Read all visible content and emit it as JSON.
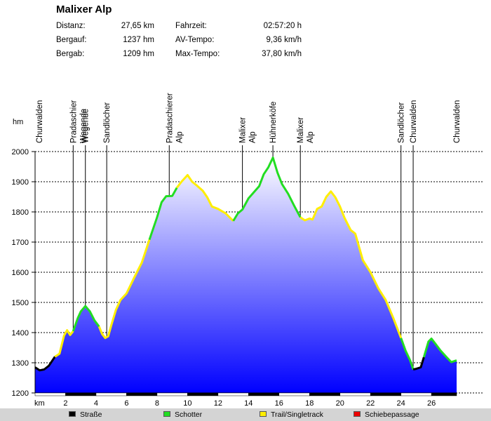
{
  "title": "Malixer Alp",
  "stats_left": [
    {
      "label": "Distanz:",
      "value": "27,65 km"
    },
    {
      "label": "Bergauf:",
      "value": "1237 hm"
    },
    {
      "label": "Bergab:",
      "value": "1209 hm"
    }
  ],
  "stats_right": [
    {
      "label": "Fahrzeit:",
      "value": "02:57:20 h"
    },
    {
      "label": "AV-Tempo:",
      "value": "9,36 km/h"
    },
    {
      "label": "Max-Tempo:",
      "value": "37,80 km/h"
    }
  ],
  "legend": [
    {
      "label": "Straße",
      "color": "#000000"
    },
    {
      "label": "Schotter",
      "color": "#22dd22"
    },
    {
      "label": "Trail/Singletrack",
      "color": "#ffee00"
    },
    {
      "label": "Schiebepassage",
      "color": "#ee0000"
    }
  ],
  "chart_data": {
    "type": "area",
    "xlabel": "km",
    "ylabel": "hm",
    "xlim": [
      0,
      27.65
    ],
    "ylim": [
      1200,
      2000
    ],
    "x_ticks": [
      2,
      4,
      6,
      8,
      10,
      12,
      14,
      16,
      18,
      20,
      22,
      24,
      26
    ],
    "y_ticks": [
      1200,
      1300,
      1400,
      1500,
      1600,
      1700,
      1800,
      1900,
      2000
    ],
    "grid": true,
    "fill": {
      "top": "#ffffff",
      "bottom": "#0000ff"
    },
    "waypoints": [
      {
        "km": 0,
        "name": "Churwalden"
      },
      {
        "km": 2.5,
        "name": "Pradaschier Wegende"
      },
      {
        "km": 3.3,
        "name": "Wegende"
      },
      {
        "km": 4.7,
        "name": "Sandlöcher"
      },
      {
        "km": 8.8,
        "name": "Pradaschierer Alp"
      },
      {
        "km": 13.6,
        "name": "Malixer Alp"
      },
      {
        "km": 15.6,
        "name": "Hühnerköfe"
      },
      {
        "km": 17.4,
        "name": "Malixer Alp"
      },
      {
        "km": 24.0,
        "name": "Sandlöcher"
      },
      {
        "km": 24.8,
        "name": "Churwalden"
      },
      {
        "km": 27.65,
        "name": "Churwalden"
      }
    ],
    "profile": {
      "km": [
        0,
        0.3,
        0.6,
        0.9,
        1.3,
        1.6,
        1.9,
        2.1,
        2.3,
        2.5,
        2.8,
        3.0,
        3.3,
        3.6,
        3.9,
        4.2,
        4.4,
        4.6,
        4.8,
        5.0,
        5.3,
        5.6,
        6.0,
        6.5,
        7.0,
        7.5,
        8.0,
        8.3,
        8.6,
        9.0,
        9.3,
        9.6,
        10.0,
        10.3,
        10.6,
        11.0,
        11.3,
        11.6,
        12.0,
        12.5,
        13.0,
        13.3,
        13.6,
        14.0,
        14.3,
        14.7,
        15.0,
        15.3,
        15.6,
        15.9,
        16.2,
        16.6,
        17.0,
        17.4,
        17.7,
        18.0,
        18.2,
        18.5,
        18.8,
        19.1,
        19.4,
        19.7,
        20.0,
        20.3,
        20.7,
        21.0,
        21.5,
        22.0,
        22.5,
        23.0,
        23.5,
        24.0,
        24.3,
        24.6,
        24.8,
        25.0,
        25.3,
        25.6,
        25.8,
        26.0,
        26.3,
        26.6,
        27.0,
        27.3,
        27.65
      ],
      "elevation": [
        1285,
        1275,
        1278,
        1290,
        1320,
        1330,
        1390,
        1408,
        1392,
        1405,
        1448,
        1470,
        1488,
        1470,
        1440,
        1420,
        1395,
        1382,
        1388,
        1425,
        1475,
        1508,
        1530,
        1582,
        1632,
        1708,
        1782,
        1832,
        1852,
        1853,
        1880,
        1900,
        1922,
        1900,
        1888,
        1870,
        1848,
        1818,
        1810,
        1795,
        1770,
        1795,
        1808,
        1845,
        1862,
        1885,
        1925,
        1948,
        1980,
        1930,
        1892,
        1860,
        1820,
        1782,
        1772,
        1778,
        1775,
        1810,
        1818,
        1850,
        1868,
        1848,
        1818,
        1780,
        1740,
        1728,
        1640,
        1600,
        1548,
        1508,
        1448,
        1382,
        1340,
        1308,
        1278,
        1280,
        1285,
        1335,
        1370,
        1380,
        1360,
        1340,
        1318,
        1302,
        1308
      ],
      "surface_segments": [
        {
          "from_km": 0,
          "to_km": 1.3,
          "type": "Straße"
        },
        {
          "from_km": 1.3,
          "to_km": 2.5,
          "type": "Trail/Singletrack"
        },
        {
          "from_km": 2.5,
          "to_km": 4.2,
          "type": "Schotter"
        },
        {
          "from_km": 4.2,
          "to_km": 7.5,
          "type": "Trail/Singletrack"
        },
        {
          "from_km": 7.5,
          "to_km": 9.3,
          "type": "Schotter"
        },
        {
          "from_km": 9.3,
          "to_km": 13.0,
          "type": "Trail/Singletrack"
        },
        {
          "from_km": 13.0,
          "to_km": 17.4,
          "type": "Schotter"
        },
        {
          "from_km": 17.4,
          "to_km": 24.0,
          "type": "Trail/Singletrack"
        },
        {
          "from_km": 24.0,
          "to_km": 24.8,
          "type": "Schotter"
        },
        {
          "from_km": 24.8,
          "to_km": 25.5,
          "type": "Straße"
        },
        {
          "from_km": 25.5,
          "to_km": 27.65,
          "type": "Schotter"
        }
      ]
    }
  }
}
